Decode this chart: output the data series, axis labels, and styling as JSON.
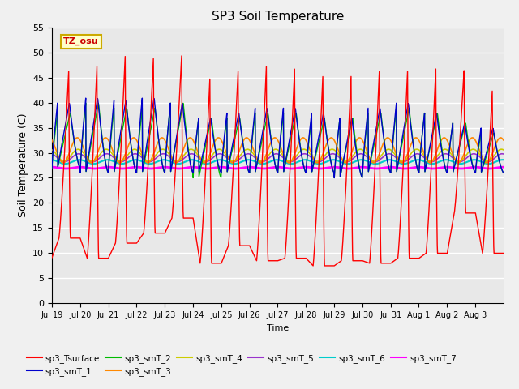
{
  "title": "SP3 Soil Temperature",
  "ylabel": "Soil Temperature (C)",
  "xlabel": "Time",
  "annotation": "TZ_osu",
  "ylim": [
    0,
    55
  ],
  "yticks": [
    0,
    5,
    10,
    15,
    20,
    25,
    30,
    35,
    40,
    45,
    50,
    55
  ],
  "series_colors": {
    "sp3_Tsurface": "#ff0000",
    "sp3_smT_1": "#0000cc",
    "sp3_smT_2": "#00bb00",
    "sp3_smT_3": "#ff8800",
    "sp3_smT_4": "#cccc00",
    "sp3_smT_5": "#9933cc",
    "sp3_smT_6": "#00cccc",
    "sp3_smT_7": "#ff00ff"
  },
  "bg_color": "#e8e8e8",
  "grid_color": "#ffffff",
  "n_days": 16,
  "x_tick_labels": [
    "Jul 19",
    "Jul 20",
    "Jul 21",
    "Jul 22",
    "Jul 23",
    "Jul 24",
    "Jul 25",
    "Jul 26",
    "Jul 27",
    "Jul 28",
    "Jul 29",
    "Jul 30",
    "Jul 31",
    "Aug 1",
    "Aug 2",
    "Aug 3"
  ],
  "surface_peaks": [
    47,
    48,
    50,
    49.5,
    50,
    45.5,
    47,
    48,
    47.5,
    46,
    46,
    47,
    47,
    47.5,
    47,
    43
  ],
  "surface_troughs": [
    13,
    9,
    12,
    14,
    17,
    8,
    11.5,
    8.5,
    9,
    7.5,
    8.5,
    8,
    9,
    10,
    18,
    10
  ],
  "smt1_peaks": [
    40,
    41,
    40.5,
    41,
    40,
    37,
    38,
    39,
    39,
    38,
    37,
    39,
    40,
    38,
    36,
    35
  ],
  "smt1_troughs": [
    27,
    26,
    26,
    26,
    26,
    26,
    26,
    26,
    26,
    26,
    25,
    26,
    26,
    26,
    26,
    26
  ],
  "smt2_peaks": [
    38,
    40,
    39,
    39,
    40,
    37,
    37,
    38,
    38,
    37,
    37,
    38,
    39,
    38,
    36,
    34
  ],
  "smt2_troughs": [
    27,
    26,
    26,
    26,
    26,
    25,
    26,
    26,
    26,
    26,
    25,
    26,
    26,
    26,
    26,
    26
  ],
  "smt3_base": 30.5,
  "smt3_amp": 2.5,
  "smt4_base": 29.5,
  "smt4_amp": 1.2,
  "smt5_base": 29.0,
  "smt5_amp": 0.8,
  "smt6_base": 28.2,
  "smt6_amp": 0.4,
  "smt7_base": 27.0,
  "smt7_amp": 0.15
}
